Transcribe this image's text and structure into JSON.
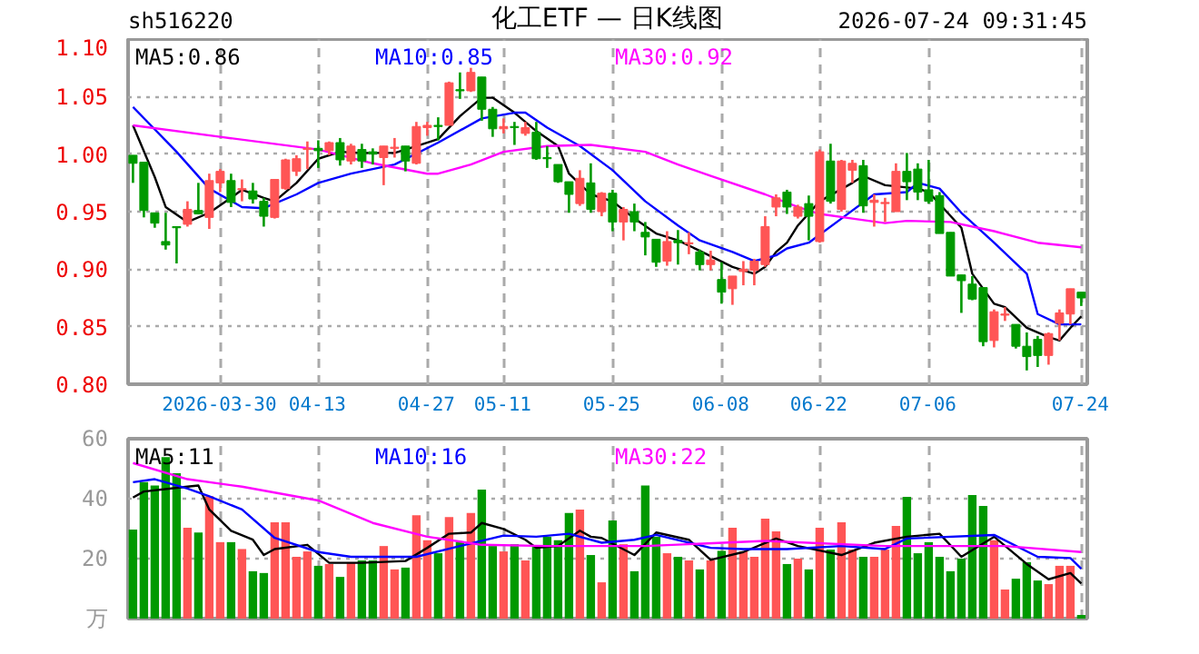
{
  "chart_data": [
    {
      "type": "candlestick",
      "title": "化工ETF — 日K线图",
      "annotations": [
        "sh516220",
        "2026-07-24 09:31:45"
      ],
      "categories": [
        null,
        null,
        null,
        null,
        null,
        null,
        null,
        null,
        "2026-03-30",
        null,
        null,
        null,
        null,
        null,
        null,
        null,
        null,
        "04-13",
        null,
        null,
        null,
        null,
        null,
        null,
        null,
        null,
        null,
        "04-27",
        null,
        null,
        null,
        null,
        null,
        null,
        "05-11",
        null,
        null,
        null,
        null,
        null,
        null,
        null,
        null,
        null,
        "05-25",
        null,
        null,
        null,
        null,
        null,
        null,
        null,
        null,
        null,
        "06-08",
        null,
        null,
        null,
        null,
        null,
        null,
        null,
        null,
        "06-22",
        null,
        null,
        null,
        null,
        null,
        null,
        null,
        null,
        null,
        "07-06",
        null,
        null,
        null,
        null,
        null,
        null,
        null,
        null,
        null,
        null,
        null,
        null,
        null,
        "07-24"
      ],
      "ohlc": [
        [
          0.999,
          0.999,
          0.975,
          0.992
        ],
        [
          0.993,
          0.993,
          0.945,
          0.951
        ],
        [
          0.949,
          0.949,
          0.936,
          0.94
        ],
        [
          0.924,
          0.949,
          0.917,
          0.921
        ],
        [
          0.937,
          0.937,
          0.905,
          0.936
        ],
        [
          0.939,
          0.959,
          0.937,
          0.952
        ],
        [
          0.951,
          0.975,
          0.948,
          0.948
        ],
        [
          0.945,
          0.983,
          0.935,
          0.977
        ],
        [
          0.975,
          0.987,
          0.967,
          0.985
        ],
        [
          0.977,
          0.983,
          0.954,
          0.958
        ],
        [
          0.969,
          0.978,
          0.959,
          0.97
        ],
        [
          0.968,
          0.975,
          0.957,
          0.961
        ],
        [
          0.959,
          0.962,
          0.937,
          0.946
        ],
        [
          0.945,
          0.978,
          0.944,
          0.978
        ],
        [
          0.97,
          0.996,
          0.969,
          0.995
        ],
        [
          0.985,
          0.999,
          0.981,
          0.996
        ],
        [
          1.004,
          1.011,
          0.987,
          1.005
        ],
        [
          1.005,
          1.012,
          0.988,
          1.003
        ],
        [
          1.003,
          1.011,
          0.999,
          1.01
        ],
        [
          1.01,
          1.014,
          0.99,
          0.995
        ],
        [
          0.994,
          1.009,
          0.991,
          1.007
        ],
        [
          1.004,
          1.009,
          0.988,
          0.994
        ],
        [
          1.002,
          1.005,
          0.991,
          1.0
        ],
        [
          0.997,
          1.007,
          0.973,
          1.007
        ],
        [
          1.005,
          1.014,
          0.997,
          1.006
        ],
        [
          1.007,
          1.007,
          0.985,
          0.994
        ],
        [
          0.992,
          1.028,
          0.991,
          1.024
        ],
        [
          1.023,
          1.028,
          1.016,
          1.025
        ],
        [
          1.025,
          1.032,
          1.012,
          1.024
        ],
        [
          1.025,
          1.063,
          1.025,
          1.062
        ],
        [
          1.056,
          1.071,
          1.048,
          1.055
        ],
        [
          1.055,
          1.075,
          1.054,
          1.071
        ],
        [
          1.067,
          1.067,
          1.029,
          1.039
        ],
        [
          1.039,
          1.041,
          1.015,
          1.022
        ],
        [
          1.022,
          1.031,
          1.018,
          1.024
        ],
        [
          1.024,
          1.028,
          1.008,
          1.023
        ],
        [
          1.018,
          1.028,
          1.016,
          1.023
        ],
        [
          1.019,
          1.028,
          0.995,
          0.996
        ],
        [
          0.997,
          1.007,
          0.988,
          0.996
        ],
        [
          0.991,
          0.991,
          0.975,
          0.976
        ],
        [
          0.976,
          0.976,
          0.949,
          0.965
        ],
        [
          0.957,
          0.986,
          0.955,
          0.979
        ],
        [
          0.975,
          0.992,
          0.949,
          0.952
        ],
        [
          0.95,
          0.967,
          0.946,
          0.966
        ],
        [
          0.966,
          0.969,
          0.933,
          0.941
        ],
        [
          0.941,
          0.954,
          0.925,
          0.952
        ],
        [
          0.95,
          0.957,
          0.933,
          0.941
        ],
        [
          0.932,
          0.941,
          0.912,
          0.928
        ],
        [
          0.926,
          0.926,
          0.902,
          0.906
        ],
        [
          0.907,
          0.933,
          0.903,
          0.924
        ],
        [
          0.925,
          0.934,
          0.904,
          0.923
        ],
        [
          0.922,
          0.932,
          0.913,
          0.923
        ],
        [
          0.915,
          0.917,
          0.899,
          0.904
        ],
        [
          0.904,
          0.916,
          0.899,
          0.908
        ],
        [
          0.891,
          0.906,
          0.87,
          0.88
        ],
        [
          0.883,
          0.894,
          0.869,
          0.894
        ],
        [
          0.898,
          0.907,
          0.886,
          0.9
        ],
        [
          0.899,
          0.909,
          0.886,
          0.907
        ],
        [
          0.904,
          0.946,
          0.902,
          0.937
        ],
        [
          0.954,
          0.965,
          0.946,
          0.962
        ],
        [
          0.967,
          0.969,
          0.948,
          0.954
        ],
        [
          0.946,
          0.956,
          0.944,
          0.954
        ],
        [
          0.957,
          0.964,
          0.925,
          0.946
        ],
        [
          0.924,
          1.004,
          0.923,
          1.002
        ],
        [
          0.994,
          1.009,
          0.957,
          0.959
        ],
        [
          0.952,
          0.995,
          0.95,
          0.994
        ],
        [
          0.986,
          0.995,
          0.975,
          0.992
        ],
        [
          0.99,
          0.995,
          0.949,
          0.955
        ],
        [
          0.958,
          0.965,
          0.937,
          0.96
        ],
        [
          0.957,
          0.962,
          0.941,
          0.958
        ],
        [
          0.95,
          0.992,
          0.95,
          0.985
        ],
        [
          0.985,
          1.001,
          0.96,
          0.976
        ],
        [
          0.987,
          0.992,
          0.96,
          0.967
        ],
        [
          0.969,
          0.995,
          0.957,
          0.959
        ],
        [
          0.964,
          0.967,
          0.931,
          0.931
        ],
        [
          0.932,
          0.932,
          0.894,
          0.894
        ],
        [
          0.895,
          0.895,
          0.862,
          0.89
        ],
        [
          0.887,
          0.894,
          0.873,
          0.874
        ],
        [
          0.884,
          0.884,
          0.833,
          0.837
        ],
        [
          0.838,
          0.865,
          0.832,
          0.863
        ],
        [
          0.86,
          0.867,
          0.855,
          0.861
        ],
        [
          0.852,
          0.852,
          0.831,
          0.833
        ],
        [
          0.833,
          0.845,
          0.812,
          0.824
        ],
        [
          0.839,
          0.842,
          0.815,
          0.825
        ],
        [
          0.825,
          0.845,
          0.817,
          0.844
        ],
        [
          0.853,
          0.865,
          0.838,
          0.862
        ],
        [
          0.861,
          0.883,
          0.852,
          0.883
        ],
        [
          0.88,
          0.88,
          0.868,
          0.875
        ]
      ],
      "colors": [
        "#009900",
        "#009900",
        "#009900",
        "#009900",
        "#009900",
        "#ff5555",
        "#009900",
        "#ff5555",
        "#ff5555",
        "#009900",
        "#ff5555",
        "#009900",
        "#009900",
        "#ff5555",
        "#ff5555",
        "#ff5555",
        "#ff5555",
        "#009900",
        "#ff5555",
        "#009900",
        "#ff5555",
        "#009900",
        "#009900",
        "#ff5555",
        "#ff5555",
        "#009900",
        "#ff5555",
        "#ff5555",
        "#009900",
        "#ff5555",
        "#009900",
        "#ff5555",
        "#009900",
        "#009900",
        "#ff5555",
        "#009900",
        "#ff5555",
        "#009900",
        "#009900",
        "#009900",
        "#009900",
        "#ff5555",
        "#009900",
        "#ff5555",
        "#009900",
        "#ff5555",
        "#009900",
        "#009900",
        "#009900",
        "#ff5555",
        "#009900",
        "#ff5555",
        "#009900",
        "#ff5555",
        "#009900",
        "#ff5555",
        "#ff5555",
        "#ff5555",
        "#ff5555",
        "#ff5555",
        "#009900",
        "#ff5555",
        "#009900",
        "#ff5555",
        "#009900",
        "#ff5555",
        "#ff5555",
        "#009900",
        "#ff5555",
        "#ff5555",
        "#ff5555",
        "#009900",
        "#009900",
        "#009900",
        "#009900",
        "#009900",
        "#009900",
        "#009900",
        "#009900",
        "#ff5555",
        "#ff5555",
        "#009900",
        "#009900",
        "#009900",
        "#ff5555",
        "#ff5555",
        "#ff5555",
        "#009900"
      ],
      "series": [
        {
          "type": "line",
          "name": "MA5:0.86",
          "color": "#000000",
          "values": [
            1.025,
            null,
            0.98,
            0.954,
            null,
            0.941,
            null,
            0.949,
            null,
            0.962,
            0.969,
            null,
            0.962,
            0.959,
            null,
            0.975,
            null,
            0.996,
            null,
            1.002,
            null,
            1.001,
            null,
            null,
            1.001,
            null,
            1.007,
            null,
            1.013,
            null,
            1.033,
            null,
            1.049,
            1.049,
            null,
            1.036,
            null,
            1.02,
            null,
            1.007,
            0.983,
            null,
            0.965,
            null,
            0.959,
            null,
            0.944,
            null,
            0.931,
            null,
            0.925,
            null,
            0.916,
            null,
            null,
            0.902,
            null,
            0.896,
            0.902,
            0.915,
            0.923,
            0.938,
            null,
            0.959,
            null,
            null,
            0.975,
            0.981,
            null,
            0.973,
            null,
            null,
            0.97,
            0.967,
            null,
            null,
            0.936,
            0.896,
            null,
            0.87,
            0.867,
            null,
            0.849,
            null,
            0.841,
            0.838,
            0.849,
            0.859
          ]
        },
        {
          "type": "line",
          "name": "MA10:0.85",
          "color": "#0000ff",
          "values": [
            1.041,
            null,
            null,
            null,
            1.002,
            null,
            null,
            0.97,
            null,
            null,
            0.954,
            null,
            0.953,
            null,
            null,
            0.965,
            null,
            0.975,
            null,
            null,
            0.983,
            null,
            null,
            null,
            0.991,
            null,
            null,
            null,
            1.01,
            null,
            null,
            null,
            1.031,
            null,
            null,
            1.036,
            1.036,
            null,
            1.023,
            null,
            null,
            1.007,
            null,
            null,
            0.986,
            null,
            null,
            0.959,
            null,
            null,
            0.938,
            null,
            0.925,
            null,
            null,
            0.915,
            null,
            0.907,
            null,
            0.912,
            0.918,
            null,
            0.923,
            null,
            null,
            0.944,
            null,
            null,
            0.965,
            null,
            null,
            0.967,
            0.975,
            null,
            0.97,
            null,
            0.949,
            null,
            null,
            0.923,
            null,
            null,
            0.896,
            0.861,
            null,
            0.852,
            null,
            0.852
          ]
        },
        {
          "type": "line",
          "name": "MA30:0.92",
          "color": "#ff00ff",
          "values": [
            1.025,
            null,
            null,
            null,
            null,
            null,
            null,
            null,
            1.015,
            null,
            null,
            null,
            null,
            null,
            null,
            null,
            null,
            1.004,
            null,
            null,
            null,
            null,
            0.992,
            null,
            null,
            null,
            null,
            0.983,
            0.983,
            null,
            null,
            0.991,
            null,
            null,
            1.002,
            null,
            null,
            null,
            1.007,
            null,
            null,
            null,
            1.008,
            null,
            null,
            null,
            null,
            1.002,
            null,
            null,
            0.991,
            null,
            null,
            0.981,
            null,
            null,
            null,
            null,
            0.965,
            null,
            null,
            0.954,
            null,
            0.948,
            null,
            null,
            0.944,
            null,
            null,
            0.94,
            null,
            0.942,
            null,
            null,
            null,
            0.941,
            null,
            null,
            null,
            0.933,
            null,
            null,
            null,
            0.923,
            null,
            null,
            null,
            0.919
          ]
        }
      ],
      "ylim": [
        0.8,
        1.1
      ],
      "yticks": [
        {
          "value": 0.8,
          "label": "0.80"
        },
        {
          "value": 0.85,
          "label": "0.85"
        },
        {
          "value": 0.9,
          "label": "0.90"
        },
        {
          "value": 0.95,
          "label": "0.95"
        },
        {
          "value": 1.0,
          "label": "1.00"
        },
        {
          "value": 1.05,
          "label": "1.05"
        },
        {
          "value": 1.1,
          "label": "1.10"
        }
      ],
      "grid": true,
      "legend": "top"
    },
    {
      "type": "bar",
      "ylabel": "万",
      "categories": [
        null,
        null,
        null,
        null,
        null,
        null,
        null,
        null,
        null,
        null,
        null,
        null,
        null,
        null,
        null,
        null,
        null,
        null,
        null,
        null,
        null,
        null,
        null,
        null,
        null,
        null,
        null,
        null,
        null,
        null,
        null,
        null,
        null,
        null,
        null,
        null,
        null,
        null,
        null,
        null,
        null,
        null,
        null,
        null,
        null,
        null,
        null,
        null,
        null,
        null,
        null,
        null,
        null,
        null,
        null,
        null,
        null,
        null,
        null,
        null,
        null,
        null,
        null,
        null,
        null,
        null,
        null,
        null,
        null,
        null,
        null,
        null,
        null,
        null,
        null,
        null,
        null,
        null,
        null,
        null,
        null,
        null,
        null,
        null,
        null,
        null,
        null,
        null
      ],
      "values": [
        29.7,
        45.5,
        44.4,
        53.9,
        48.5,
        30.3,
        28.7,
        40.8,
        25.5,
        25.5,
        23.2,
        15.8,
        15.2,
        32.1,
        32.1,
        20.6,
        22.4,
        17.6,
        18.2,
        13.9,
        18.8,
        19.4,
        19.4,
        24.2,
        16.4,
        17.0,
        34.5,
        26.1,
        21.8,
        33.9,
        25.5,
        35.2,
        43.0,
        24.2,
        22.4,
        24.8,
        19.4,
        24.2,
        27.3,
        26.1,
        35.2,
        36.4,
        21.2,
        12.1,
        32.7,
        24.8,
        15.8,
        44.4,
        27.3,
        21.8,
        20.6,
        19.4,
        16.4,
        19.4,
        22.6,
        30.3,
        22.4,
        20.6,
        33.3,
        29.1,
        18.2,
        20.0,
        16.4,
        30.3,
        23.0,
        32.1,
        23.0,
        20.6,
        20.6,
        23.0,
        30.9,
        40.6,
        21.8,
        25.5,
        20.6,
        15.8,
        20.0,
        41.2,
        37.6,
        26.1,
        9.7,
        13.3,
        18.8,
        12.7,
        11.5,
        17.6,
        17.6,
        1.2
      ],
      "colors": [
        "#009900",
        "#009900",
        "#009900",
        "#009900",
        "#009900",
        "#ff5555",
        "#009900",
        "#ff5555",
        "#ff5555",
        "#009900",
        "#ff5555",
        "#009900",
        "#009900",
        "#ff5555",
        "#ff5555",
        "#ff5555",
        "#ff5555",
        "#009900",
        "#ff5555",
        "#009900",
        "#ff5555",
        "#009900",
        "#009900",
        "#ff5555",
        "#ff5555",
        "#009900",
        "#ff5555",
        "#ff5555",
        "#009900",
        "#ff5555",
        "#009900",
        "#ff5555",
        "#009900",
        "#009900",
        "#ff5555",
        "#009900",
        "#ff5555",
        "#009900",
        "#009900",
        "#009900",
        "#009900",
        "#ff5555",
        "#009900",
        "#ff5555",
        "#009900",
        "#ff5555",
        "#009900",
        "#009900",
        "#009900",
        "#ff5555",
        "#009900",
        "#ff5555",
        "#009900",
        "#ff5555",
        "#009900",
        "#ff5555",
        "#ff5555",
        "#ff5555",
        "#ff5555",
        "#ff5555",
        "#009900",
        "#ff5555",
        "#009900",
        "#ff5555",
        "#009900",
        "#ff5555",
        "#ff5555",
        "#009900",
        "#ff5555",
        "#ff5555",
        "#ff5555",
        "#009900",
        "#009900",
        "#009900",
        "#009900",
        "#009900",
        "#009900",
        "#009900",
        "#009900",
        "#ff5555",
        "#ff5555",
        "#009900",
        "#009900",
        "#009900",
        "#ff5555",
        "#ff5555",
        "#ff5555",
        "#009900"
      ],
      "series": [
        {
          "type": "line",
          "name": "MA5:11",
          "color": "#000000",
          "values": [
            40.4,
            42.4,
            null,
            null,
            null,
            44.0,
            44.4,
            36.4,
            null,
            29.3,
            null,
            26.3,
            21.2,
            23.2,
            null,
            null,
            24.6,
            null,
            18.6,
            null,
            null,
            18.6,
            null,
            null,
            null,
            19.2,
            null,
            23.6,
            null,
            28.3,
            null,
            28.7,
            31.9,
            null,
            29.9,
            null,
            26.3,
            23.6,
            null,
            24.2,
            null,
            29.3,
            27.3,
            26.9,
            null,
            null,
            21.2,
            null,
            28.7,
            null,
            null,
            26.3,
            null,
            19.6,
            null,
            null,
            22.2,
            null,
            null,
            26.7,
            null,
            24.2,
            null,
            null,
            null,
            21.2,
            null,
            null,
            25.3,
            null,
            null,
            27.3,
            null,
            null,
            28.3,
            null,
            20.6,
            null,
            null,
            27.3,
            null,
            null,
            18.2,
            null,
            13.1,
            null,
            15.2,
            11.7
          ]
        },
        {
          "type": "line",
          "name": "MA10:16",
          "color": "#0000ff",
          "values": [
            45.5,
            null,
            46.5,
            null,
            null,
            43.4,
            null,
            40.8,
            null,
            null,
            36.4,
            null,
            null,
            26.9,
            null,
            null,
            null,
            22.2,
            null,
            null,
            20.6,
            null,
            null,
            null,
            null,
            null,
            20.6,
            null,
            null,
            null,
            24.2,
            null,
            null,
            null,
            27.7,
            null,
            null,
            27.3,
            null,
            null,
            28.3,
            null,
            null,
            25.3,
            null,
            null,
            26.3,
            null,
            27.9,
            null,
            null,
            null,
            null,
            23.6,
            null,
            null,
            23.2,
            null,
            null,
            null,
            23.2,
            null,
            null,
            null,
            null,
            24.2,
            null,
            null,
            null,
            23.2,
            null,
            26.7,
            null,
            null,
            null,
            null,
            null,
            null,
            null,
            27.9,
            null,
            null,
            null,
            20.6,
            null,
            null,
            20.2,
            16.6
          ]
        },
        {
          "type": "line",
          "name": "MA30:22",
          "color": "#ff00ff",
          "values": [
            51.9,
            null,
            null,
            null,
            null,
            46.5,
            null,
            null,
            null,
            null,
            44.0,
            null,
            null,
            null,
            null,
            null,
            null,
            39.4,
            null,
            null,
            null,
            null,
            31.9,
            null,
            null,
            null,
            null,
            27.3,
            null,
            null,
            null,
            null,
            24.6,
            null,
            null,
            null,
            null,
            null,
            24.2,
            null,
            null,
            null,
            null,
            24.2,
            null,
            null,
            null,
            24.2,
            null,
            null,
            null,
            null,
            null,
            null,
            null,
            null,
            null,
            null,
            25.9,
            null,
            null,
            null,
            null,
            null,
            null,
            null,
            null,
            null,
            null,
            24.2,
            null,
            null,
            null,
            null,
            null,
            null,
            null,
            null,
            null,
            null,
            24.2,
            null,
            null,
            null,
            null,
            null,
            null,
            22.2
          ]
        }
      ],
      "ylim": [
        0,
        60
      ],
      "yticks": [
        20,
        40,
        60
      ],
      "grid": true,
      "tick_labels": "y",
      "legend": "top"
    }
  ]
}
